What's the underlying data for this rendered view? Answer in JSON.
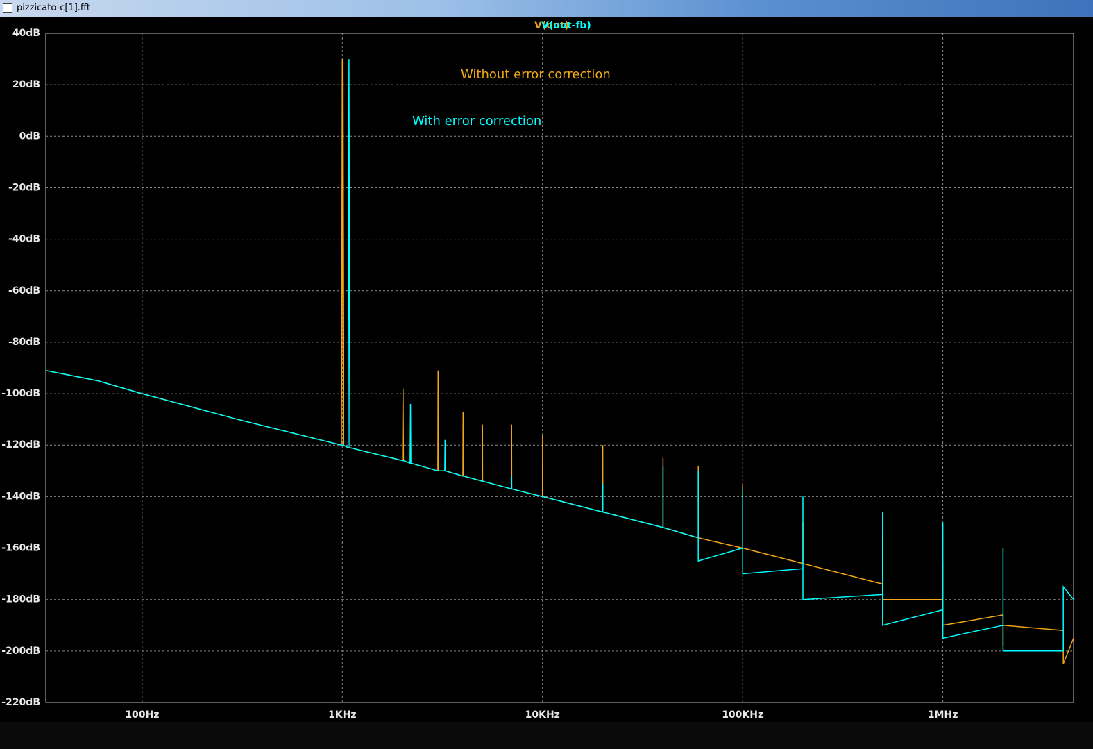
{
  "window_title": "pizzicato-c[1].fft",
  "chart_data": {
    "type": "line",
    "xscale": "log",
    "grid": true,
    "xlim": [
      33,
      4500000
    ],
    "ylim": [
      -220,
      40
    ],
    "xticks": [
      {
        "value": 100,
        "label": "100Hz"
      },
      {
        "value": 1000,
        "label": "1KHz"
      },
      {
        "value": 10000,
        "label": "10KHz"
      },
      {
        "value": 100000,
        "label": "100KHz"
      },
      {
        "value": 1000000,
        "label": "1MHz"
      }
    ],
    "yticks": [
      {
        "value": 40,
        "label": "40dB"
      },
      {
        "value": 20,
        "label": "20dB"
      },
      {
        "value": 0,
        "label": "0dB"
      },
      {
        "value": -20,
        "label": "-20dB"
      },
      {
        "value": -40,
        "label": "-40dB"
      },
      {
        "value": -60,
        "label": "-60dB"
      },
      {
        "value": -80,
        "label": "-80dB"
      },
      {
        "value": -100,
        "label": "-100dB"
      },
      {
        "value": -120,
        "label": "-120dB"
      },
      {
        "value": -140,
        "label": "-140dB"
      },
      {
        "value": -160,
        "label": "-160dB"
      },
      {
        "value": -180,
        "label": "-180dB"
      },
      {
        "value": -200,
        "label": "-200dB"
      },
      {
        "value": -220,
        "label": "-220dB"
      }
    ],
    "annotations": [
      {
        "text": "Without error correction",
        "color": "#f0a818"
      },
      {
        "text": "With error correction",
        "color": "#00ffff"
      }
    ],
    "x": [
      33,
      60,
      100,
      300,
      990,
      1000,
      1010,
      1070,
      1080,
      1090,
      2000,
      2010,
      2020,
      2180,
      2190,
      2200,
      3000,
      3010,
      3020,
      3250,
      3260,
      3270,
      4000,
      4010,
      4020,
      5000,
      5010,
      5020,
      7000,
      7010,
      7020,
      10000,
      10010,
      10020,
      20000,
      20010,
      20020,
      40000,
      40010,
      40020,
      60000,
      60010,
      60020,
      100000,
      100010,
      100020,
      200000,
      200010,
      200020,
      500000,
      500010,
      500020,
      1000000,
      1000010,
      1000020,
      2000000,
      2000010,
      2000020,
      4000000,
      4000010,
      4500000
    ],
    "series": [
      {
        "name": "V(out)",
        "color": "#f0a818",
        "values": [
          -91,
          -95,
          -100,
          -110,
          -120,
          30,
          -120,
          -121,
          -121,
          -121,
          -126,
          -98,
          -126,
          -127,
          -127,
          -127,
          -130,
          -91,
          -130,
          -130,
          -130,
          -130,
          -132,
          -107,
          -132,
          -134,
          -112,
          -134,
          -137,
          -112,
          -137,
          -140,
          -116,
          -140,
          -146,
          -120,
          -146,
          -152,
          -125,
          -152,
          -156,
          -128,
          -156,
          -160,
          -135,
          -160,
          -166,
          -150,
          -166,
          -174,
          -155,
          -180,
          -180,
          -165,
          -190,
          -186,
          -198,
          -190,
          -192,
          -205,
          -195
        ]
      },
      {
        "name": "V(out-fb)",
        "color": "#00ffff",
        "values": [
          -91,
          -95,
          -100,
          -110,
          -120,
          -120,
          -120,
          -121,
          30,
          -121,
          -126,
          -126,
          -126,
          -127,
          -104,
          -127,
          -130,
          -130,
          -130,
          -130,
          -118,
          -130,
          -132,
          -132,
          -132,
          -134,
          -134,
          -134,
          -137,
          -132,
          -137,
          -140,
          -140,
          -140,
          -146,
          -135,
          -146,
          -152,
          -128,
          -152,
          -156,
          -130,
          -165,
          -160,
          -137,
          -170,
          -168,
          -140,
          -180,
          -178,
          -146,
          -190,
          -184,
          -150,
          -195,
          -190,
          -160,
          -200,
          -200,
          -175,
          -180
        ]
      }
    ]
  }
}
